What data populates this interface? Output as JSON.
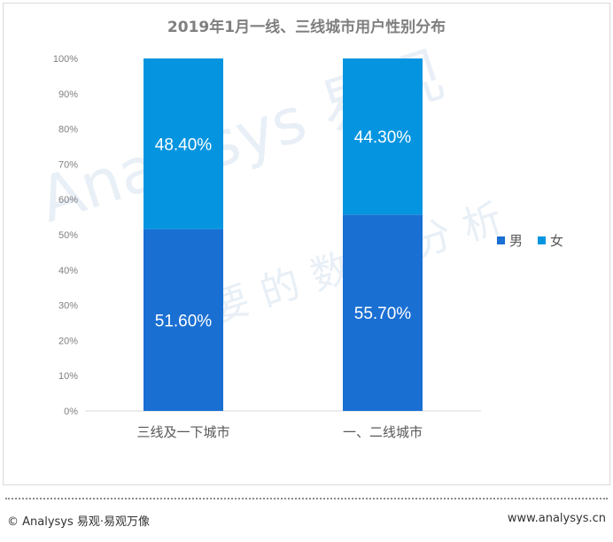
{
  "chart_data": {
    "type": "bar",
    "stacked": true,
    "title": "2019年1月一线、三线城市用户性别分布",
    "categories": [
      "三线及一下城市",
      "一、二线城市"
    ],
    "series": [
      {
        "name": "男",
        "values": [
          51.6,
          55.7
        ],
        "labels": [
          "51.60%",
          "55.70%"
        ],
        "color": "#1a6fd3"
      },
      {
        "name": "女",
        "values": [
          48.4,
          44.3
        ],
        "labels": [
          "48.40%",
          "44.30%"
        ],
        "color": "#0595e0"
      }
    ],
    "ylim": [
      0,
      100
    ],
    "yticks": [
      "0%",
      "10%",
      "20%",
      "30%",
      "40%",
      "50%",
      "60%",
      "70%",
      "80%",
      "90%",
      "100%"
    ],
    "legend_position": "right",
    "grid": false
  },
  "watermark": {
    "brand": "Analysys 易观",
    "slogan": "你要的数据分析"
  },
  "footer": {
    "left": "© Analysys 易观·易观万像",
    "right": "www.analysys.cn"
  }
}
